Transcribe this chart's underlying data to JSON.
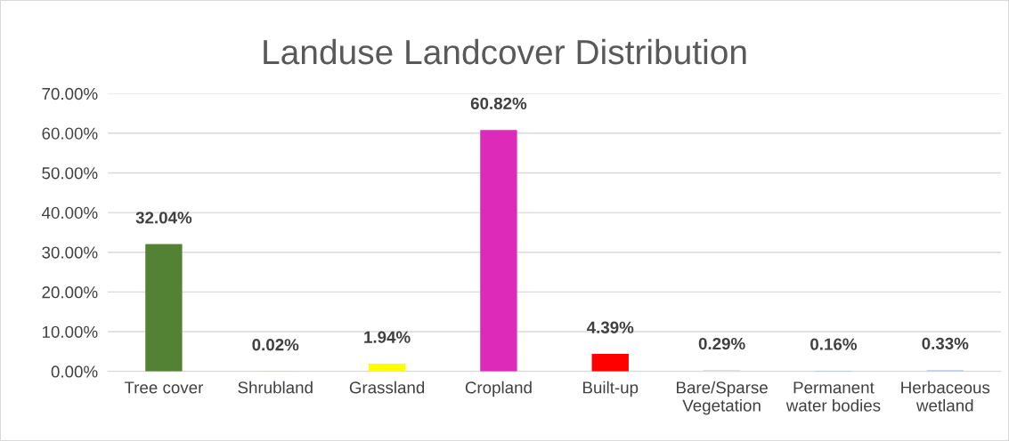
{
  "chart_data": {
    "type": "bar",
    "title": "Landuse Landcover Distribution",
    "categories": [
      "Tree cover",
      "Shrubland",
      "Grassland",
      "Cropland",
      "Built-up",
      "Bare/Sparse\nVegetation",
      "Permanent\nwater bodies",
      "Herbaceous\nwetland"
    ],
    "values": [
      32.04,
      0.02,
      1.94,
      60.82,
      4.39,
      0.29,
      0.16,
      0.33
    ],
    "colors": [
      "#548235",
      "#a9d18e",
      "#ffff00",
      "#dd2ab8",
      "#ff0000",
      "#d9d9d9",
      "#9dc3e6",
      "#b4c7e7"
    ],
    "value_labels": [
      "32.04%",
      "0.02%",
      "1.94%",
      "60.82%",
      "4.39%",
      "0.29%",
      "0.16%",
      "0.33%"
    ],
    "ylim": [
      0,
      70
    ],
    "yticks": [
      {
        "value": 0,
        "label": "0.00%"
      },
      {
        "value": 10,
        "label": "10.00%"
      },
      {
        "value": 20,
        "label": "20.00%"
      },
      {
        "value": 30,
        "label": "30.00%"
      },
      {
        "value": 40,
        "label": "40.00%"
      },
      {
        "value": 50,
        "label": "50.00%"
      },
      {
        "value": 60,
        "label": "60.00%"
      },
      {
        "value": 70,
        "label": "70.00%"
      }
    ],
    "grid": "y",
    "legend": false
  }
}
